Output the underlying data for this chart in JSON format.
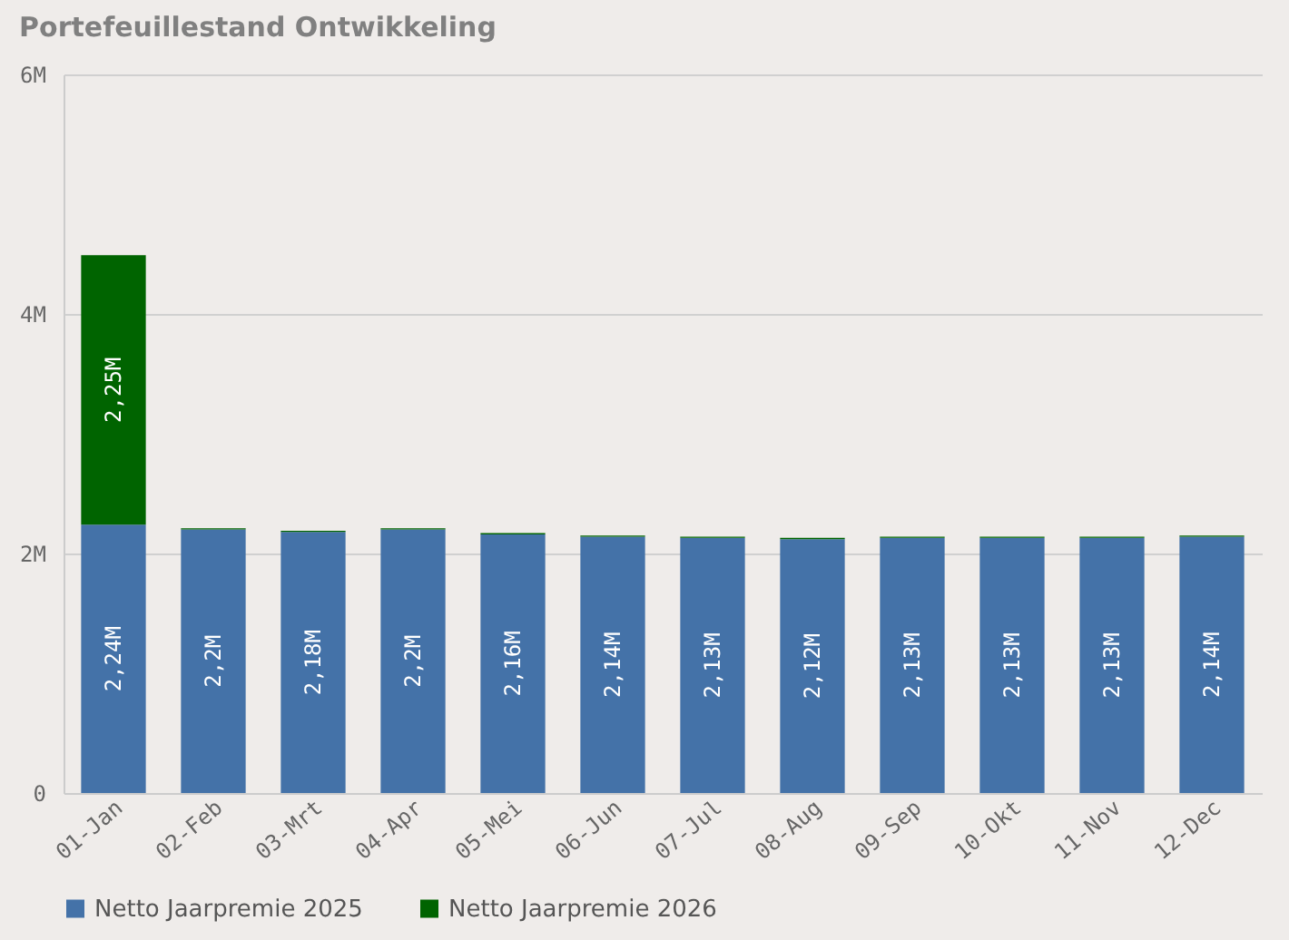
{
  "chart_data": {
    "type": "bar",
    "title": "Portefeuillestand Ontwikkeling",
    "stacked": true,
    "categories": [
      "01-Jan",
      "02-Feb",
      "03-Mrt",
      "04-Apr",
      "05-Mei",
      "06-Jun",
      "07-Jul",
      "08-Aug",
      "09-Sep",
      "10-Okt",
      "11-Nov",
      "12-Dec"
    ],
    "series": [
      {
        "name": "Netto Jaarpremie 2025",
        "color": "#4472a8",
        "values": [
          2.24,
          2.2,
          2.18,
          2.2,
          2.16,
          2.14,
          2.13,
          2.12,
          2.13,
          2.13,
          2.13,
          2.14
        ],
        "value_labels": [
          "2,24M",
          "2,2M",
          "2,18M",
          "2,2M",
          "2,16M",
          "2,14M",
          "2,13M",
          "2,12M",
          "2,13M",
          "2,13M",
          "2,13M",
          "2,14M"
        ]
      },
      {
        "name": "Netto Jaarpremie 2026",
        "color": "#006400",
        "values": [
          2.25,
          0.01,
          0.01,
          0.01,
          0.01,
          0.01,
          0.01,
          0.01,
          0.01,
          0.01,
          0.01,
          0.01
        ],
        "value_labels": [
          "2,25M",
          null,
          null,
          null,
          null,
          null,
          null,
          null,
          null,
          null,
          null,
          null
        ]
      }
    ],
    "ylim": [
      0,
      6
    ],
    "yticks": [
      {
        "value": 0,
        "label": "0"
      },
      {
        "value": 2,
        "label": "2M"
      },
      {
        "value": 4,
        "label": "4M"
      },
      {
        "value": 6,
        "label": "6M"
      }
    ],
    "grid": "y",
    "legend": "bottom"
  }
}
